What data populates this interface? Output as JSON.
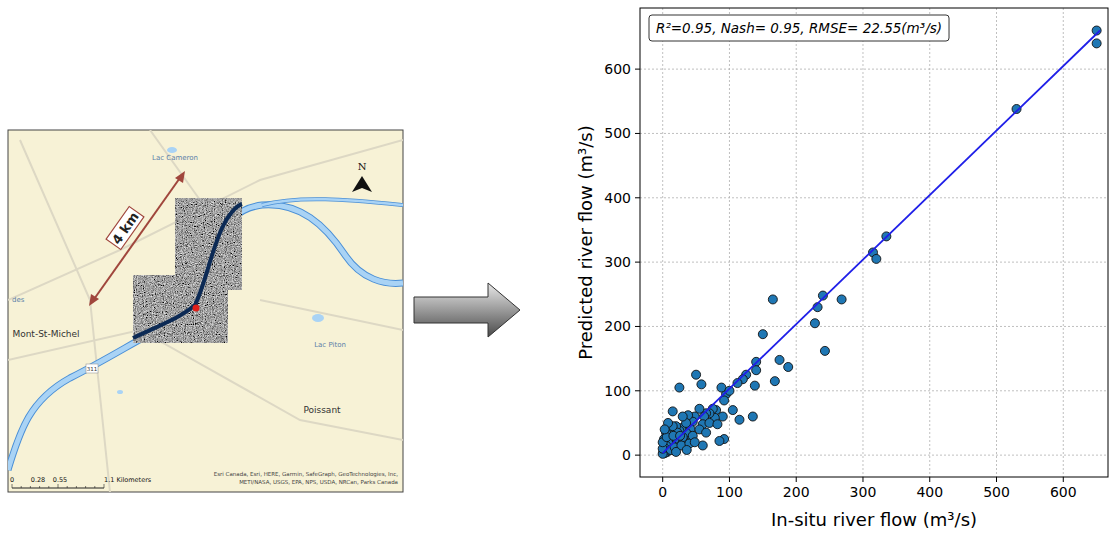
{
  "chart_data": {
    "type": "scatter",
    "annotation": "R²=0.95, Nash= 0.95, RMSE= 22.55(m³/s)",
    "x_label": "In-situ river flow (m³/s)",
    "y_label": "Predicted river flow (m³/s)",
    "xlim": [
      -34,
      667
    ],
    "ylim": [
      -34,
      695
    ],
    "xticks": [
      0,
      100,
      200,
      300,
      400,
      500,
      600
    ],
    "yticks": [
      0,
      100,
      200,
      300,
      400,
      500,
      600
    ],
    "grid": true,
    "series": [
      {
        "type": "scatter",
        "color": "#1f77b4",
        "marker": "circle",
        "x": [
          650,
          650,
          530,
          335,
          315,
          320,
          268,
          240,
          232,
          228,
          243,
          188,
          175,
          165,
          168,
          150,
          140,
          140,
          138,
          135,
          125,
          120,
          115,
          95,
          92,
          88,
          90,
          92,
          85,
          80,
          78,
          75,
          70,
          65,
          62,
          60,
          58,
          55,
          50,
          48,
          45,
          42,
          40,
          38,
          35,
          32,
          30,
          28,
          25,
          25,
          22,
          20,
          18,
          15,
          14,
          12,
          10,
          10,
          8,
          7,
          5,
          5,
          4,
          3,
          2,
          2,
          1,
          0,
          0,
          0,
          6,
          12,
          18,
          22,
          28,
          35,
          40,
          45,
          55,
          65,
          70,
          82,
          100,
          105,
          112,
          60,
          36,
          48,
          30,
          20,
          15,
          8,
          3,
          16,
          26
        ],
        "values": [
          660,
          640,
          538,
          340,
          315,
          305,
          242,
          248,
          230,
          205,
          162,
          137,
          148,
          242,
          115,
          188,
          145,
          132,
          108,
          60,
          125,
          118,
          55,
          95,
          85,
          105,
          60,
          25,
          22,
          70,
          58,
          72,
          65,
          65,
          60,
          48,
          110,
          72,
          125,
          60,
          52,
          40,
          30,
          62,
          35,
          22,
          28,
          42,
          105,
          38,
          20,
          45,
          25,
          68,
          15,
          30,
          10,
          40,
          20,
          5,
          35,
          15,
          8,
          3,
          12,
          25,
          5,
          2,
          10,
          20,
          28,
          8,
          12,
          35,
          15,
          50,
          18,
          30,
          40,
          35,
          50,
          48,
          100,
          70,
          112,
          15,
          8,
          20,
          60,
          5,
          45,
          50,
          40,
          30,
          30
        ]
      },
      {
        "type": "line",
        "color": "#1f1fe8",
        "line_style": "solid",
        "x": [
          0,
          655
        ],
        "values": [
          3,
          660
        ]
      }
    ]
  },
  "map": {
    "scale_arrow_label": "4 km",
    "north": "N",
    "places": [
      "Lac Cameron",
      "Mont-St-Michel",
      "Lac Piton",
      "Poissant",
      "des"
    ],
    "route": "311",
    "scale_bar": [
      "0",
      "0.28",
      "0.55",
      "1.1 Kilometers"
    ],
    "attribution": [
      "Esri Canada, Esri, HERE, Garmin, SafeGraph, GeoTechnologies, Inc,",
      "METI/NASA, USGS, EPA, NPS, USDA, NRCan, Parks Canada"
    ]
  }
}
